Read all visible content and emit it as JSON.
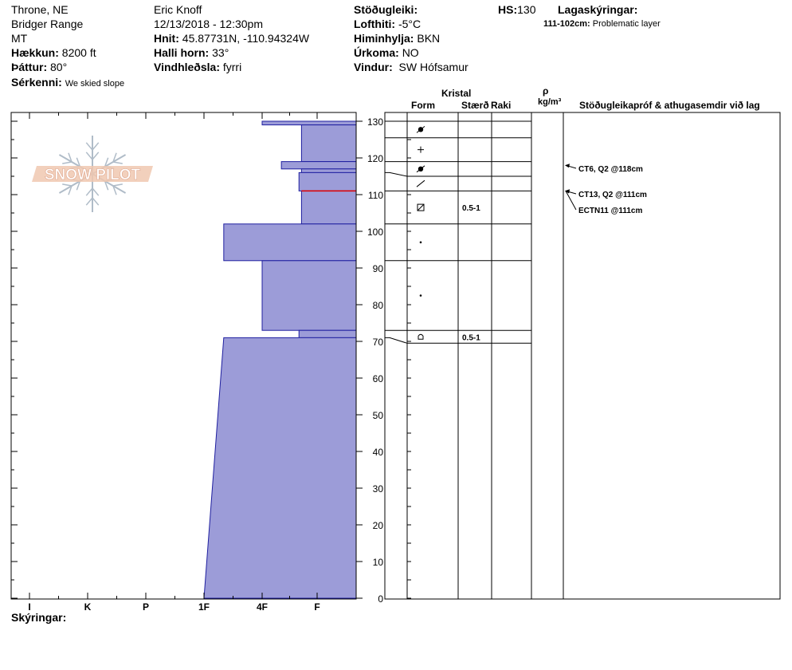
{
  "header": {
    "location": "Throne, NE",
    "range": "Bridger Range",
    "state": "MT",
    "elevation_label": "Hækkun:",
    "elevation": "8200 ft",
    "aspect_label": "Þáttur:",
    "aspect": "80°",
    "features_label": "Sérkenni:",
    "features": "We skied slope",
    "observer": "Eric Knoff",
    "datetime": "12/13/2018 - 12:30pm",
    "coords_label": "Hnit:",
    "coords": "45.87731N, -110.94324W",
    "slope_label": "Halli horn:",
    "slope": "33°",
    "wind_loading_label": "Vindhleðsla:",
    "wind_loading": "fyrri",
    "stability_label": "Stöðugleiki:",
    "stability": "",
    "air_temp_label": "Lofthiti:",
    "air_temp": "-5°C",
    "sky_label": "Himinhylja:",
    "sky": "BKN",
    "precip_label": "Úrkoma:",
    "precip": "NO",
    "wind_label": "Vindur:",
    "wind": "SW Hófsamur",
    "hs_label": "HS:",
    "hs": "130",
    "layer_notes_label": "Lagaskýringar:",
    "layer_note_range": "111-102cm:",
    "layer_note_text": "Problematic layer"
  },
  "table_headers": {
    "kristal": "Kristal",
    "form": "Form",
    "size": "Stærð",
    "moisture": "Raki",
    "rho": "ρ",
    "density_unit": "kg/m³",
    "tests": "Stöðugleikapróf & athugasemdir við lag"
  },
  "footer": {
    "legend_label": "Skýringar:"
  },
  "logo": {
    "text": "SNOW PILOT"
  },
  "colors": {
    "fill": "#9c9cd8",
    "edge": "#2020a0",
    "critical": "#e00000"
  },
  "chart_data": {
    "type": "bar",
    "orientation": "horizontal",
    "y_axis_label": "",
    "ylim": [
      0,
      130
    ],
    "y_ticks": [
      0,
      10,
      20,
      30,
      40,
      50,
      60,
      70,
      80,
      90,
      100,
      110,
      120,
      130
    ],
    "hardness_scale": [
      "I",
      "K",
      "P",
      "1F",
      "4F",
      "F"
    ],
    "xlim": [
      0,
      6
    ],
    "layers": [
      {
        "top": 130,
        "bottom": 129,
        "hardness": 2.0
      },
      {
        "top": 129,
        "bottom": 119,
        "hardness": 1.0
      },
      {
        "top": 119,
        "bottom": 117,
        "hardness": 1.65
      },
      {
        "top": 117,
        "bottom": 116,
        "hardness": 1.0
      },
      {
        "top": 116,
        "bottom": 111,
        "hardness": 1.33
      },
      {
        "top": 111,
        "bottom": 102,
        "hardness": 1.0
      },
      {
        "top": 102,
        "bottom": 92,
        "hardness": 2.66
      },
      {
        "top": 92,
        "bottom": 73,
        "hardness": 2.0
      },
      {
        "top": 73,
        "bottom": 71,
        "hardness": 1.33
      },
      {
        "top": 71,
        "bottom": 0,
        "hardness_top": 2.66,
        "hardness_bottom": 3.0
      }
    ],
    "critical_layer": 111,
    "grain_layers": [
      {
        "top": 130,
        "bottom": 125.5,
        "form": "df-decomposed",
        "size": ""
      },
      {
        "top": 125.5,
        "bottom": 119,
        "form": "pp-plus",
        "size": ""
      },
      {
        "top": 119,
        "bottom": 115,
        "form": "df-decomposed",
        "size": ""
      },
      {
        "top": 115,
        "bottom": 111,
        "form": "slash",
        "size": ""
      },
      {
        "top": 111,
        "bottom": 102,
        "form": "fc-boxed",
        "size": "0.5-1"
      },
      {
        "top": 102,
        "bottom": 92,
        "form": "dot",
        "size": ""
      },
      {
        "top": 92,
        "bottom": 73,
        "form": "dot",
        "size": ""
      },
      {
        "top": 73,
        "bottom": 69.5,
        "form": "dh-cup",
        "size": "0.5-1"
      }
    ],
    "tests": [
      {
        "text": "CT6, Q2 @118cm",
        "depth": 118
      },
      {
        "text": "CT13, Q2 @111cm",
        "depth": 111
      },
      {
        "text": "ECTN11 @111cm",
        "depth": 111
      }
    ]
  }
}
